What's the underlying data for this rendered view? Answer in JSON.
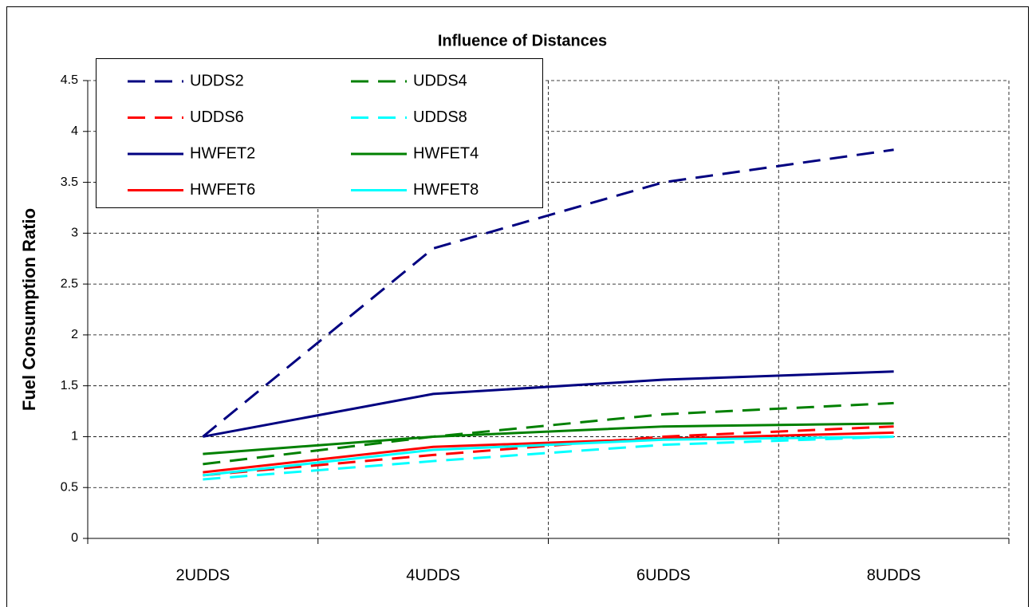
{
  "chart_data": {
    "type": "line",
    "title": "Influence of Distances",
    "y_label": "Fuel Consumption Ratio",
    "categories": [
      "2UDDS",
      "4UDDS",
      "6UDDS",
      "8UDDS"
    ],
    "ylim": [
      0,
      4.5
    ],
    "yticks": [
      0,
      0.5,
      1,
      1.5,
      2,
      2.5,
      3,
      3.5,
      4,
      4.5
    ],
    "grid": true,
    "series": [
      {
        "name": "UDDS2",
        "color": "#000080",
        "dashed": true,
        "values": [
          1.0,
          2.85,
          3.5,
          3.82
        ]
      },
      {
        "name": "UDDS4",
        "color": "#008000",
        "dashed": true,
        "values": [
          0.73,
          1.0,
          1.22,
          1.33
        ]
      },
      {
        "name": "UDDS6",
        "color": "#ff0000",
        "dashed": true,
        "values": [
          0.62,
          0.82,
          1.0,
          1.1
        ]
      },
      {
        "name": "UDDS8",
        "color": "#00ffff",
        "dashed": true,
        "values": [
          0.58,
          0.76,
          0.92,
          1.0
        ]
      },
      {
        "name": "HWFET2",
        "color": "#000080",
        "dashed": false,
        "values": [
          1.0,
          1.42,
          1.56,
          1.64
        ]
      },
      {
        "name": "HWFET4",
        "color": "#008000",
        "dashed": false,
        "values": [
          0.83,
          1.0,
          1.1,
          1.13
        ]
      },
      {
        "name": "HWFET6",
        "color": "#ff0000",
        "dashed": false,
        "values": [
          0.65,
          0.9,
          0.98,
          1.04
        ]
      },
      {
        "name": "HWFET8",
        "color": "#00ffff",
        "dashed": false,
        "values": [
          0.62,
          0.87,
          0.97,
          1.0
        ]
      }
    ]
  }
}
